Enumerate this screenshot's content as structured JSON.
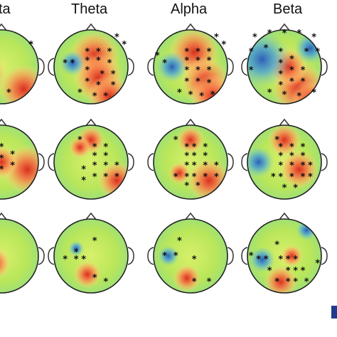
{
  "headers": [
    "ta",
    "Theta",
    "Alpha",
    "Beta"
  ],
  "topomaps": [
    [
      {
        "warm": [
          [
            0.2,
            0.6,
            1.0
          ],
          [
            0.8,
            0.8,
            0.9
          ],
          [
            0.1,
            0.8,
            0.8
          ]
        ],
        "cool": [],
        "dots": [
          [
            0.35,
            0.3
          ],
          [
            0.35,
            0.5
          ],
          [
            0.25,
            0.65
          ],
          [
            0.45,
            0.65
          ],
          [
            0.25,
            0.8
          ],
          [
            0.45,
            0.8
          ],
          [
            0.6,
            0.85
          ],
          [
            0.1,
            0.75
          ],
          [
            0.9,
            0.2
          ]
        ]
      },
      {
        "warm": [
          [
            0.55,
            0.35,
            0.9
          ],
          [
            0.6,
            0.65,
            0.9
          ],
          [
            0.75,
            0.9,
            0.8
          ]
        ],
        "cool": [
          [
            0.25,
            0.45,
            0.5
          ]
        ],
        "dots": [
          [
            0.45,
            0.3
          ],
          [
            0.6,
            0.3
          ],
          [
            0.75,
            0.3
          ],
          [
            0.45,
            0.42
          ],
          [
            0.6,
            0.42
          ],
          [
            0.75,
            0.45
          ],
          [
            0.45,
            0.55
          ],
          [
            0.65,
            0.6
          ],
          [
            0.8,
            0.6
          ],
          [
            0.45,
            0.7
          ],
          [
            0.6,
            0.75
          ],
          [
            0.8,
            0.75
          ],
          [
            0.35,
            0.85
          ],
          [
            0.55,
            0.9
          ],
          [
            0.7,
            0.9
          ],
          [
            0.85,
            0.1
          ],
          [
            0.95,
            0.2
          ],
          [
            0.25,
            0.45
          ],
          [
            0.15,
            0.45
          ]
        ]
      },
      {
        "warm": [
          [
            0.55,
            0.3,
            0.9
          ],
          [
            0.7,
            0.7,
            0.9
          ],
          [
            0.8,
            0.9,
            0.8
          ]
        ],
        "cool": [
          [
            0.25,
            0.5,
            0.6
          ]
        ],
        "dots": [
          [
            0.45,
            0.3
          ],
          [
            0.6,
            0.3
          ],
          [
            0.75,
            0.3
          ],
          [
            0.45,
            0.42
          ],
          [
            0.6,
            0.42
          ],
          [
            0.75,
            0.42
          ],
          [
            0.45,
            0.55
          ],
          [
            0.6,
            0.55
          ],
          [
            0.75,
            0.55
          ],
          [
            0.45,
            0.7
          ],
          [
            0.6,
            0.7
          ],
          [
            0.75,
            0.72
          ],
          [
            0.35,
            0.85
          ],
          [
            0.5,
            0.88
          ],
          [
            0.65,
            0.9
          ],
          [
            0.8,
            0.88
          ],
          [
            0.85,
            0.1
          ],
          [
            0.95,
            0.2
          ],
          [
            0.05,
            0.35
          ],
          [
            0.15,
            0.45
          ]
        ]
      },
      {
        "warm": [
          [
            0.7,
            0.8,
            1.0
          ],
          [
            0.55,
            0.5,
            0.7
          ],
          [
            0.85,
            0.95,
            0.7
          ]
        ],
        "cool": [
          [
            0.2,
            0.4,
            1.1
          ],
          [
            0.85,
            0.25,
            0.6
          ]
        ],
        "dots": [
          [
            0.1,
            0.1
          ],
          [
            0.3,
            0.05
          ],
          [
            0.5,
            0.05
          ],
          [
            0.7,
            0.05
          ],
          [
            0.9,
            0.1
          ],
          [
            0.95,
            0.3
          ],
          [
            0.05,
            0.3
          ],
          [
            0.05,
            0.55
          ],
          [
            0.45,
            0.3
          ],
          [
            0.6,
            0.4
          ],
          [
            0.45,
            0.45
          ],
          [
            0.6,
            0.55
          ],
          [
            0.75,
            0.55
          ],
          [
            0.45,
            0.6
          ],
          [
            0.6,
            0.7
          ],
          [
            0.75,
            0.7
          ],
          [
            0.45,
            0.75
          ],
          [
            0.3,
            0.85
          ],
          [
            0.5,
            0.88
          ],
          [
            0.7,
            0.9
          ],
          [
            0.9,
            0.85
          ],
          [
            0.25,
            0.25
          ],
          [
            0.8,
            0.3
          ]
        ]
      }
    ],
    [
      {
        "warm": [
          [
            0.85,
            0.6,
            0.9
          ],
          [
            0.5,
            0.5,
            0.6
          ]
        ],
        "cool": [],
        "dots": [
          [
            0.35,
            0.3
          ],
          [
            0.35,
            0.5
          ],
          [
            0.25,
            0.65
          ],
          [
            0.5,
            0.3
          ],
          [
            0.5,
            0.45
          ],
          [
            0.5,
            0.6
          ],
          [
            0.65,
            0.4
          ],
          [
            0.65,
            0.55
          ],
          [
            0.45,
            0.75
          ],
          [
            0.15,
            0.8
          ]
        ]
      },
      {
        "warm": [
          [
            0.5,
            0.2,
            0.5
          ],
          [
            0.85,
            0.75,
            0.7
          ],
          [
            0.35,
            0.3,
            0.4
          ]
        ],
        "cool": [],
        "dots": [
          [
            0.35,
            0.2
          ],
          [
            0.55,
            0.3
          ],
          [
            0.7,
            0.3
          ],
          [
            0.55,
            0.42
          ],
          [
            0.7,
            0.42
          ],
          [
            0.55,
            0.55
          ],
          [
            0.7,
            0.55
          ],
          [
            0.4,
            0.6
          ],
          [
            0.55,
            0.7
          ],
          [
            0.7,
            0.7
          ],
          [
            0.85,
            0.7
          ],
          [
            0.4,
            0.75
          ],
          [
            0.85,
            0.55
          ]
        ]
      },
      {
        "warm": [
          [
            0.5,
            0.2,
            0.5
          ],
          [
            0.75,
            0.75,
            0.8
          ],
          [
            0.35,
            0.65,
            0.4
          ]
        ],
        "cool": [],
        "dots": [
          [
            0.3,
            0.2
          ],
          [
            0.45,
            0.3
          ],
          [
            0.55,
            0.3
          ],
          [
            0.7,
            0.3
          ],
          [
            0.45,
            0.42
          ],
          [
            0.55,
            0.42
          ],
          [
            0.7,
            0.42
          ],
          [
            0.45,
            0.55
          ],
          [
            0.55,
            0.55
          ],
          [
            0.7,
            0.55
          ],
          [
            0.85,
            0.55
          ],
          [
            0.3,
            0.7
          ],
          [
            0.45,
            0.7
          ],
          [
            0.55,
            0.7
          ],
          [
            0.7,
            0.7
          ],
          [
            0.85,
            0.7
          ],
          [
            0.45,
            0.82
          ],
          [
            0.6,
            0.82
          ]
        ]
      },
      {
        "warm": [
          [
            0.5,
            0.2,
            0.6
          ],
          [
            0.7,
            0.6,
            0.7
          ]
        ],
        "cool": [
          [
            0.15,
            0.5,
            0.6
          ]
        ],
        "dots": [
          [
            0.4,
            0.2
          ],
          [
            0.45,
            0.3
          ],
          [
            0.6,
            0.3
          ],
          [
            0.75,
            0.3
          ],
          [
            0.45,
            0.42
          ],
          [
            0.6,
            0.42
          ],
          [
            0.75,
            0.42
          ],
          [
            0.45,
            0.55
          ],
          [
            0.6,
            0.55
          ],
          [
            0.75,
            0.55
          ],
          [
            0.85,
            0.55
          ],
          [
            0.35,
            0.7
          ],
          [
            0.45,
            0.7
          ],
          [
            0.6,
            0.7
          ],
          [
            0.75,
            0.7
          ],
          [
            0.85,
            0.7
          ],
          [
            0.5,
            0.85
          ],
          [
            0.65,
            0.85
          ]
        ]
      }
    ],
    [
      {
        "warm": [
          [
            0.4,
            0.6,
            0.6
          ]
        ],
        "cool": [],
        "dots": []
      },
      {
        "warm": [
          [
            0.45,
            0.75,
            0.5
          ]
        ],
        "cool": [
          [
            0.3,
            0.4,
            0.3
          ]
        ],
        "dots": [
          [
            0.55,
            0.3
          ],
          [
            0.15,
            0.55
          ],
          [
            0.3,
            0.55
          ],
          [
            0.4,
            0.55
          ],
          [
            0.3,
            0.45
          ],
          [
            0.55,
            0.8
          ],
          [
            0.7,
            0.85
          ]
        ]
      },
      {
        "warm": [
          [
            0.45,
            0.8,
            0.5
          ]
        ],
        "cool": [
          [
            0.2,
            0.5,
            0.4
          ]
        ],
        "dots": [
          [
            0.35,
            0.3
          ],
          [
            0.15,
            0.5
          ],
          [
            0.3,
            0.5
          ],
          [
            0.55,
            0.55
          ],
          [
            0.55,
            0.85
          ],
          [
            0.75,
            0.85
          ]
        ]
      },
      {
        "warm": [
          [
            0.45,
            0.85,
            0.6
          ],
          [
            0.6,
            0.5,
            0.4
          ]
        ],
        "cool": [
          [
            0.2,
            0.55,
            0.5
          ],
          [
            0.8,
            0.15,
            0.4
          ]
        ],
        "dots": [
          [
            0.4,
            0.35
          ],
          [
            0.05,
            0.5
          ],
          [
            0.15,
            0.55
          ],
          [
            0.25,
            0.55
          ],
          [
            0.3,
            0.7
          ],
          [
            0.45,
            0.55
          ],
          [
            0.55,
            0.55
          ],
          [
            0.65,
            0.55
          ],
          [
            0.55,
            0.7
          ],
          [
            0.65,
            0.7
          ],
          [
            0.75,
            0.7
          ],
          [
            0.4,
            0.85
          ],
          [
            0.55,
            0.85
          ],
          [
            0.65,
            0.85
          ],
          [
            0.8,
            0.85
          ],
          [
            0.95,
            0.6
          ]
        ]
      }
    ]
  ]
}
